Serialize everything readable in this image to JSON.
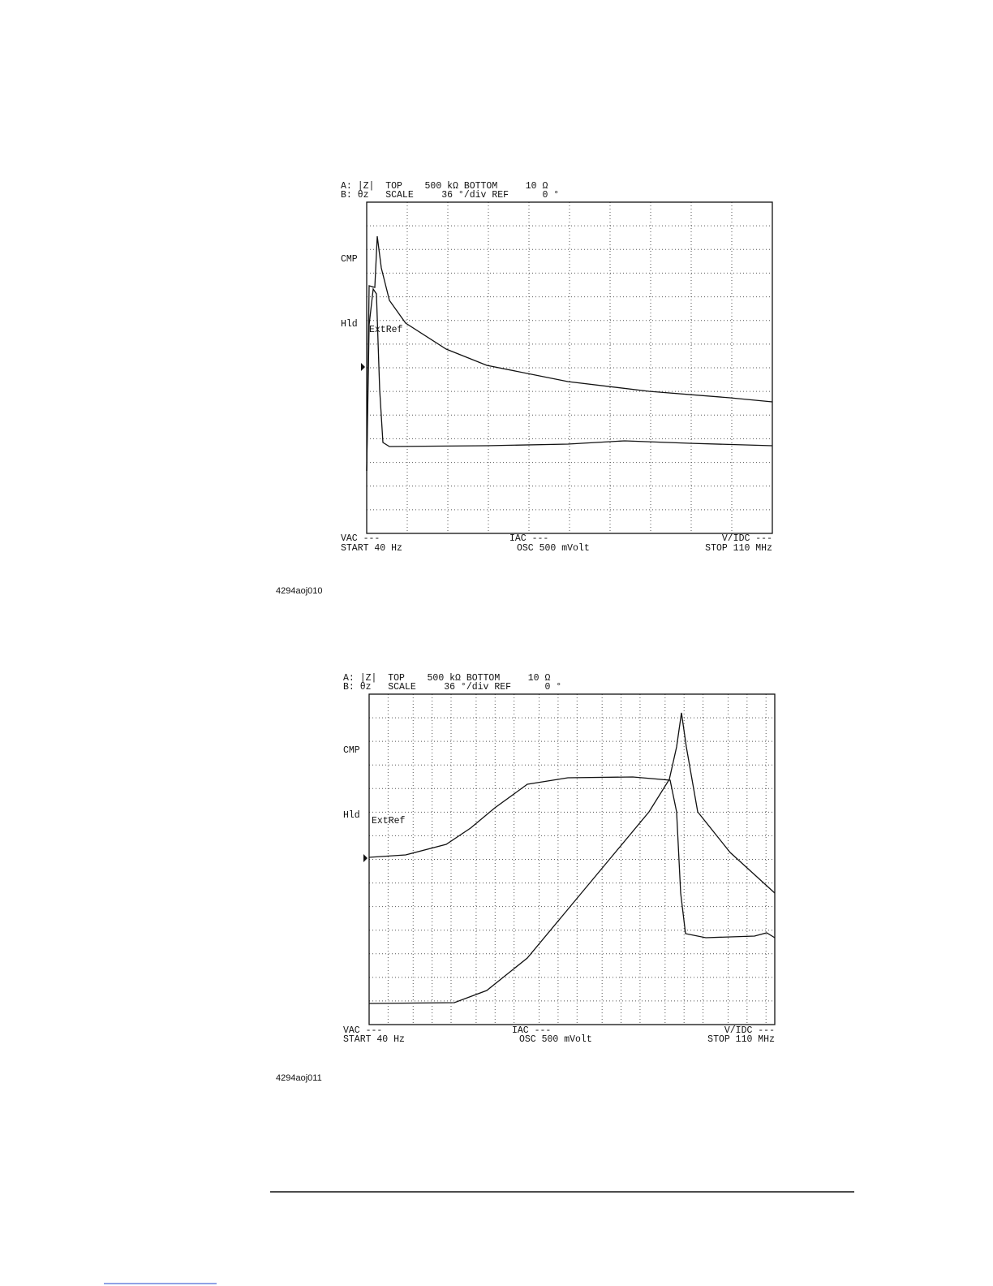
{
  "screens": [
    {
      "header": [
        "A: |Z|  TOP    500 kΩ BOTTOM     10 Ω",
        "B: θz   SCALE     36 °/div REF      0 °"
      ],
      "cmp": "CMP",
      "hld": "Hld",
      "extref": "ExtRef",
      "vac": "VAC ---",
      "start": "START 40 Hz",
      "iac": "IAC ---",
      "osc": "OSC 500 mVolt",
      "vidc": "V/IDC ---",
      "stop": "STOP 110 MHz",
      "figure": "4294aoj010"
    },
    {
      "header": [
        "A: |Z|  TOP    500 kΩ BOTTOM     10 Ω",
        "B: θz   SCALE     36 °/div REF      0 °"
      ],
      "cmp": "CMP",
      "hld": "Hld",
      "extref": "ExtRef",
      "vac": "VAC ---",
      "start": "START 40 Hz",
      "iac": "IAC ---",
      "osc": "OSC 500 mVolt",
      "vidc": "V/IDC ---",
      "stop": "STOP 110 MHz",
      "figure": "4294aoj011"
    }
  ]
}
